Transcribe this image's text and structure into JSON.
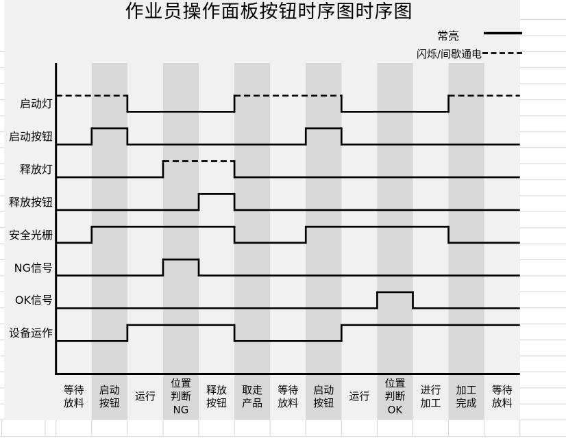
{
  "title": "作业员操作面板按钮时序图时序图",
  "legend": {
    "items": [
      {
        "label": "常亮",
        "style": "solid"
      },
      {
        "label": "闪烁/间歇通电",
        "style": "dashed"
      }
    ]
  },
  "colors": {
    "chart_bg": "#f1f1f1",
    "band": "#d8d8d8",
    "line": "#000000",
    "gridline": "#d4d4d4",
    "cell_bg": "#ffffff",
    "text": "#000000"
  },
  "chart_data": {
    "type": "timing-diagram",
    "title": "作业员操作面板按钮时序图时序图",
    "x_unit": "工序阶段",
    "levels": {
      "high": 1,
      "low": 0
    },
    "legend": [
      {
        "label": "常亮",
        "style": "solid"
      },
      {
        "label": "闪烁/间歇通电",
        "style": "dashed"
      }
    ],
    "categories": [
      {
        "label": "等待放料",
        "lines": [
          "等待",
          "放料"
        ],
        "shaded": false
      },
      {
        "label": "启动按钮",
        "lines": [
          "启动",
          "按钮"
        ],
        "shaded": true
      },
      {
        "label": "运行",
        "lines": [
          "运行"
        ],
        "shaded": false
      },
      {
        "label": "位置判断NG",
        "lines": [
          "位置",
          "判断",
          "NG"
        ],
        "shaded": true
      },
      {
        "label": "释放按钮",
        "lines": [
          "释放",
          "按钮"
        ],
        "shaded": false
      },
      {
        "label": "取走产品",
        "lines": [
          "取走",
          "产品"
        ],
        "shaded": true
      },
      {
        "label": "等待放料",
        "lines": [
          "等待",
          "放料"
        ],
        "shaded": false
      },
      {
        "label": "启动按钮",
        "lines": [
          "启动",
          "按钮"
        ],
        "shaded": true
      },
      {
        "label": "运行",
        "lines": [
          "运行"
        ],
        "shaded": false
      },
      {
        "label": "位置判断OK",
        "lines": [
          "位置",
          "判断",
          "OK"
        ],
        "shaded": true
      },
      {
        "label": "进行加工",
        "lines": [
          "进行",
          "加工"
        ],
        "shaded": false
      },
      {
        "label": "加工完成",
        "lines": [
          "加工",
          "完成"
        ],
        "shaded": true
      },
      {
        "label": "等待放料",
        "lines": [
          "等待",
          "放料"
        ],
        "shaded": false
      }
    ],
    "signals": [
      {
        "name": "启动灯",
        "segments": [
          {
            "from": 0,
            "to": 2,
            "level": 1,
            "dashed": true
          },
          {
            "from": 2,
            "to": 5,
            "level": 0
          },
          {
            "from": 5,
            "to": 8,
            "level": 1,
            "dashed": true
          },
          {
            "from": 8,
            "to": 11,
            "level": 0
          },
          {
            "from": 11,
            "to": 13,
            "level": 1,
            "dashed": true
          }
        ]
      },
      {
        "name": "启动按钮",
        "segments": [
          {
            "from": 0,
            "to": 1,
            "level": 0
          },
          {
            "from": 1,
            "to": 2,
            "level": 1
          },
          {
            "from": 2,
            "to": 7,
            "level": 0
          },
          {
            "from": 7,
            "to": 8,
            "level": 1
          },
          {
            "from": 8,
            "to": 13,
            "level": 0
          }
        ]
      },
      {
        "name": "释放灯",
        "segments": [
          {
            "from": 0,
            "to": 3,
            "level": 0
          },
          {
            "from": 3,
            "to": 5,
            "level": 1,
            "dashed": true
          },
          {
            "from": 5,
            "to": 13,
            "level": 0
          }
        ]
      },
      {
        "name": "释放按钮",
        "segments": [
          {
            "from": 0,
            "to": 4,
            "level": 0
          },
          {
            "from": 4,
            "to": 5,
            "level": 1
          },
          {
            "from": 5,
            "to": 13,
            "level": 0
          }
        ]
      },
      {
        "name": "安全光栅",
        "segments": [
          {
            "from": 0,
            "to": 1,
            "level": 0
          },
          {
            "from": 1,
            "to": 5,
            "level": 1
          },
          {
            "from": 5,
            "to": 7,
            "level": 0
          },
          {
            "from": 7,
            "to": 11,
            "level": 1
          },
          {
            "from": 11,
            "to": 13,
            "level": 0
          }
        ]
      },
      {
        "name": "NG信号",
        "segments": [
          {
            "from": 0,
            "to": 3,
            "level": 0
          },
          {
            "from": 3,
            "to": 4,
            "level": 1
          },
          {
            "from": 4,
            "to": 13,
            "level": 0
          }
        ]
      },
      {
        "name": "OK信号",
        "segments": [
          {
            "from": 0,
            "to": 9,
            "level": 0
          },
          {
            "from": 9,
            "to": 10,
            "level": 1
          },
          {
            "from": 10,
            "to": 13,
            "level": 0
          }
        ]
      },
      {
        "name": "设备运作",
        "segments": [
          {
            "from": 0,
            "to": 2,
            "level": 0
          },
          {
            "from": 2,
            "to": 5,
            "level": 1
          },
          {
            "from": 5,
            "to": 8,
            "level": 0
          },
          {
            "from": 8,
            "to": 13,
            "level": 1
          }
        ]
      }
    ]
  }
}
